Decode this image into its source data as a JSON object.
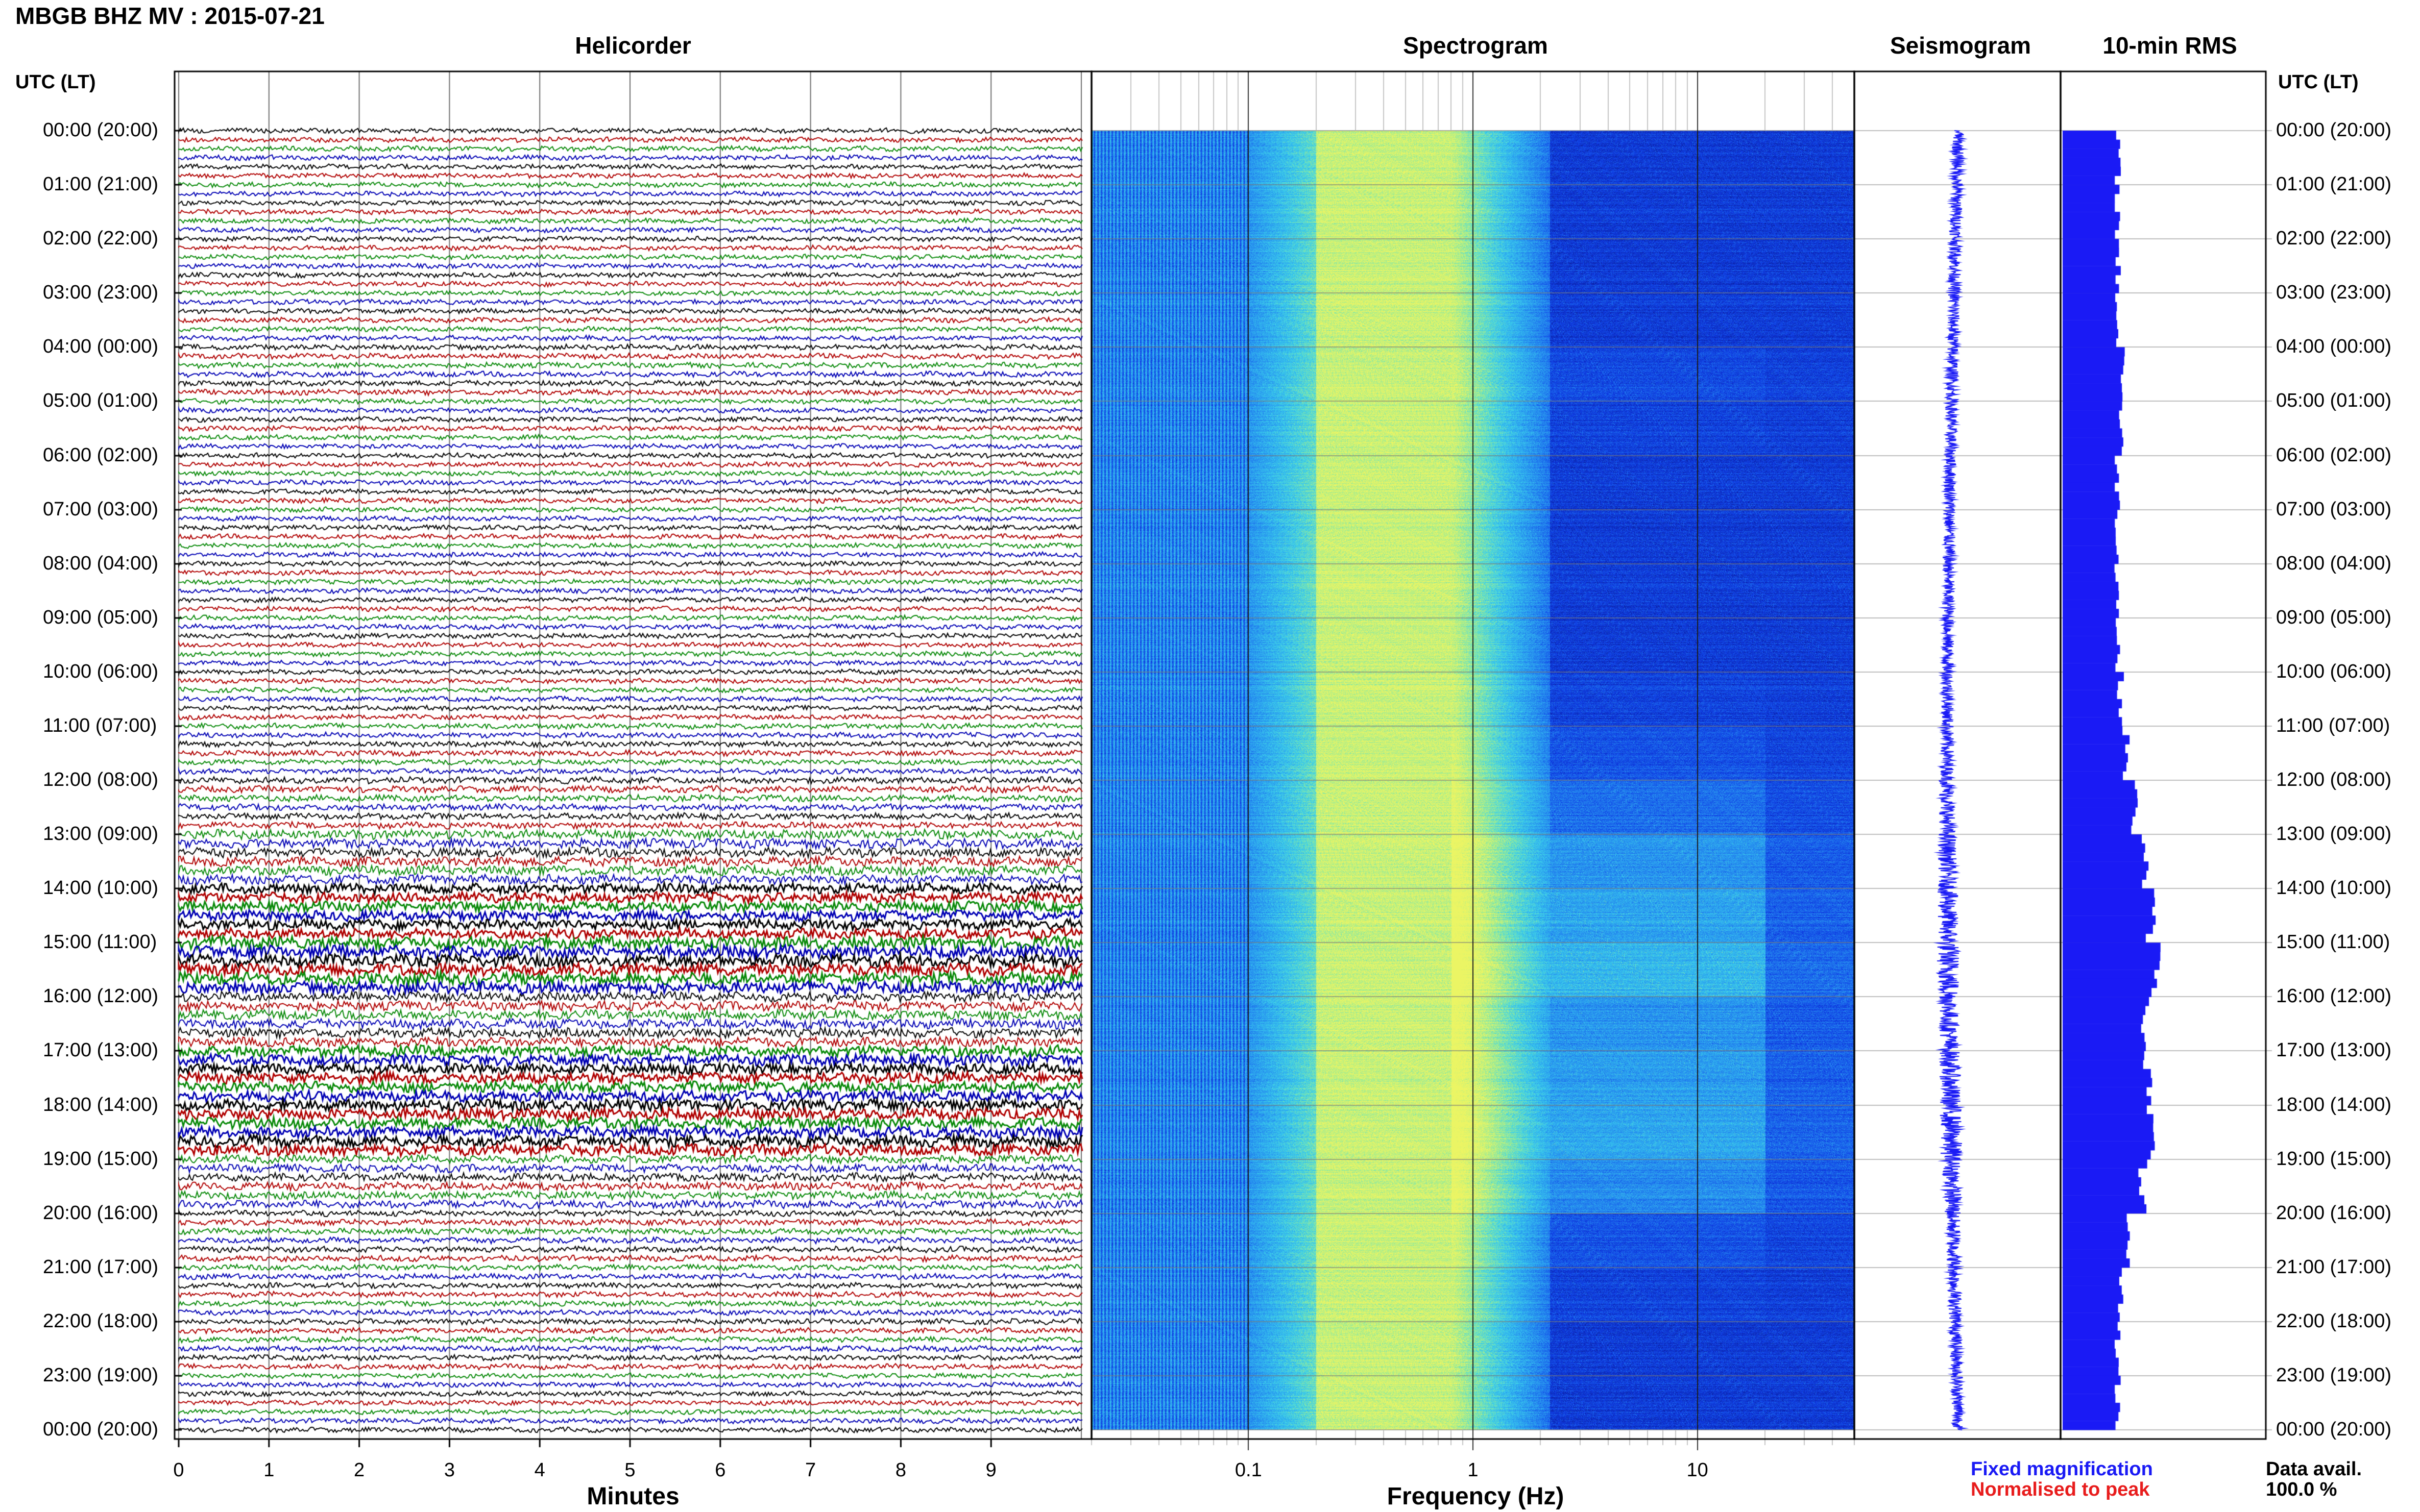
{
  "header": {
    "station": "MBGB BHZ MV : 2015-07-21"
  },
  "panels": {
    "helicorder": "Helicorder",
    "spectrogram": "Spectrogram",
    "seismogram": "Seismogram",
    "rms": "10-min RMS"
  },
  "utc_header": "UTC (LT)",
  "row_labels": [
    "00:00 (20:00)",
    "01:00 (21:00)",
    "02:00 (22:00)",
    "03:00 (23:00)",
    "04:00 (00:00)",
    "05:00 (01:00)",
    "06:00 (02:00)",
    "07:00 (03:00)",
    "08:00 (04:00)",
    "09:00 (05:00)",
    "10:00 (06:00)",
    "11:00 (07:00)",
    "12:00 (08:00)",
    "13:00 (09:00)",
    "14:00 (10:00)",
    "15:00 (11:00)",
    "16:00 (12:00)",
    "17:00 (13:00)",
    "18:00 (14:00)",
    "19:00 (15:00)",
    "20:00 (16:00)",
    "21:00 (17:00)",
    "22:00 (18:00)",
    "23:00 (19:00)",
    "00:00 (20:00)"
  ],
  "axes": {
    "minutes_title": "Minutes",
    "minutes_ticks": [
      "0",
      "1",
      "2",
      "3",
      "4",
      "5",
      "6",
      "7",
      "8",
      "9"
    ],
    "frequency_title": "Frequency (Hz)",
    "frequency_ticks": [
      "0.1",
      "1",
      "10"
    ]
  },
  "legend": {
    "fixed": "Fixed magnification",
    "normalised": "Normalised to peak"
  },
  "availability": {
    "label": "Data avail.",
    "value": "100.0 %"
  },
  "colors": {
    "trace_cycle": [
      "#000000",
      "#b00000",
      "#0a8a0a",
      "#0000b4"
    ],
    "seismogram": "#1a1af5",
    "rms": "#1a1af5",
    "spec_low": "#0a1ea0",
    "spec_mid": "#36b8f0",
    "spec_high": "#e8f46a"
  },
  "chart_data": [
    {
      "type": "line",
      "title": "Helicorder",
      "xlabel": "Minutes",
      "x_ticks": [
        0,
        1,
        2,
        3,
        4,
        5,
        6,
        7,
        8,
        9
      ],
      "xlim": [
        0,
        10
      ],
      "lines_per_hour": 6,
      "hours": 24,
      "trace_color_cycle": [
        "black",
        "red",
        "green",
        "blue"
      ],
      "relative_amplitude_by_hour": [
        1,
        1,
        1,
        1,
        1.1,
        1,
        1,
        1,
        1,
        1,
        1,
        1.1,
        1.3,
        1.9,
        2.0,
        2.4,
        1.9,
        2.1,
        2.2,
        1.6,
        1.2,
        1.1,
        1.1,
        1.0
      ]
    },
    {
      "type": "heatmap",
      "title": "Spectrogram",
      "xlabel": "Frequency (Hz)",
      "x_scale": "log",
      "x_ticks": [
        0.1,
        1,
        10
      ],
      "xlim": [
        0.02,
        50
      ],
      "peak_energy_band_hz": [
        0.2,
        0.8
      ],
      "high_freq_energy_hours": [
        12,
        20
      ]
    },
    {
      "type": "line",
      "title": "Seismogram",
      "relative_amplitude_by_hour": [
        1,
        1,
        1,
        1,
        1,
        1,
        1,
        1,
        1,
        1,
        1,
        1.1,
        1.3,
        1.5,
        1.7,
        1.9,
        1.6,
        1.7,
        1.8,
        1.5,
        1.2,
        1.1,
        1.0,
        1.0
      ]
    },
    {
      "type": "bar",
      "title": "10-min RMS",
      "hours": 24,
      "bars_per_hour": 6,
      "relative_rms_by_hour": [
        1,
        1,
        1,
        1,
        1.1,
        1.05,
        1,
        1,
        1,
        1,
        1.05,
        1.15,
        1.3,
        1.5,
        1.6,
        1.7,
        1.5,
        1.55,
        1.6,
        1.45,
        1.15,
        1.05,
        1.0,
        1.0
      ]
    }
  ]
}
